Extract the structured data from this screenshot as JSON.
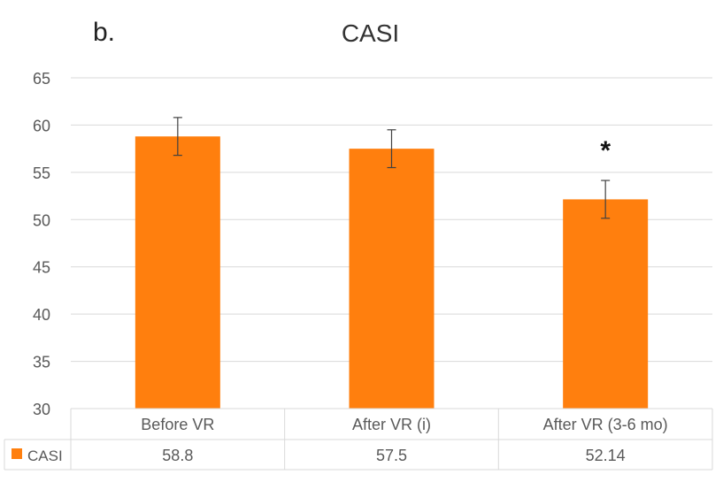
{
  "panel_label": "b.",
  "chart_data": {
    "type": "bar",
    "title": "CASI",
    "categories": [
      "Before VR",
      "After VR (i)",
      "After VR (3-6 mo)"
    ],
    "series": [
      {
        "name": "CASI",
        "values": [
          58.8,
          57.5,
          52.14
        ],
        "error": [
          2.0,
          2.0,
          2.0
        ],
        "color": "#FF7F0E"
      }
    ],
    "table_values": [
      "58.8",
      "57.5",
      "52.14"
    ],
    "annotations": [
      {
        "category_index": 2,
        "text": "*"
      }
    ],
    "ylim": [
      30,
      65
    ],
    "yticks": [
      30,
      35,
      40,
      45,
      50,
      55,
      60,
      65
    ],
    "grid": true,
    "legend": "data-table-left",
    "data_table": true
  },
  "colors": {
    "bar": "#FF7F0E",
    "grid": "#d9d9d9",
    "text": "#595959",
    "error": "#404040"
  }
}
